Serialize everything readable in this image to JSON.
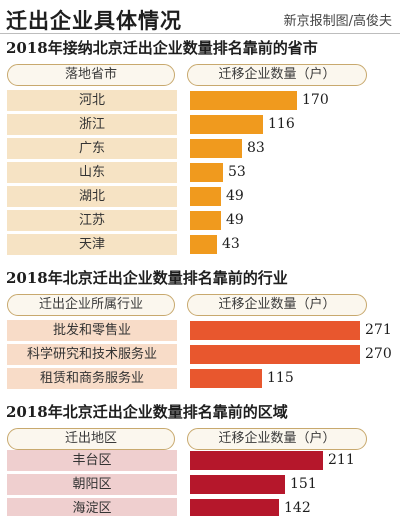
{
  "header": {
    "title": "迁出企业具体情况",
    "credit": "新京报制图/高俊夫"
  },
  "chart_data": [
    {
      "type": "bar",
      "title": "2018年接纳北京迁出企业数量排名靠前的省市",
      "category_header": "落地省市",
      "value_header": "迁移企业数量（户）",
      "categories": [
        "河北",
        "浙江",
        "广东",
        "山东",
        "湖北",
        "江苏",
        "天津"
      ],
      "values": [
        170,
        116,
        83,
        53,
        49,
        49,
        43
      ],
      "label_bg": "#f6e3c4",
      "bar_color": "#f09a1e"
    },
    {
      "type": "bar",
      "title": "2018年北京迁出企业数量排名靠前的行业",
      "category_header": "迁出企业所属行业",
      "value_header": "迁移企业数量（户）",
      "categories": [
        "批发和零售业",
        "科学研究和技术服务业",
        "租赁和商务服务业"
      ],
      "values": [
        271,
        270,
        115
      ],
      "label_bg": "#f8dcc8",
      "bar_color": "#e8572e"
    },
    {
      "type": "bar",
      "title": "2018年北京迁出企业数量排名靠前的区域",
      "category_header": "迁出地区",
      "value_header": "迁移企业数量（户）",
      "categories": [
        "丰台区",
        "朝阳区",
        "海淀区"
      ],
      "values": [
        211,
        151,
        142
      ],
      "label_bg": "#efcfcf",
      "bar_color": "#b5172b"
    }
  ]
}
